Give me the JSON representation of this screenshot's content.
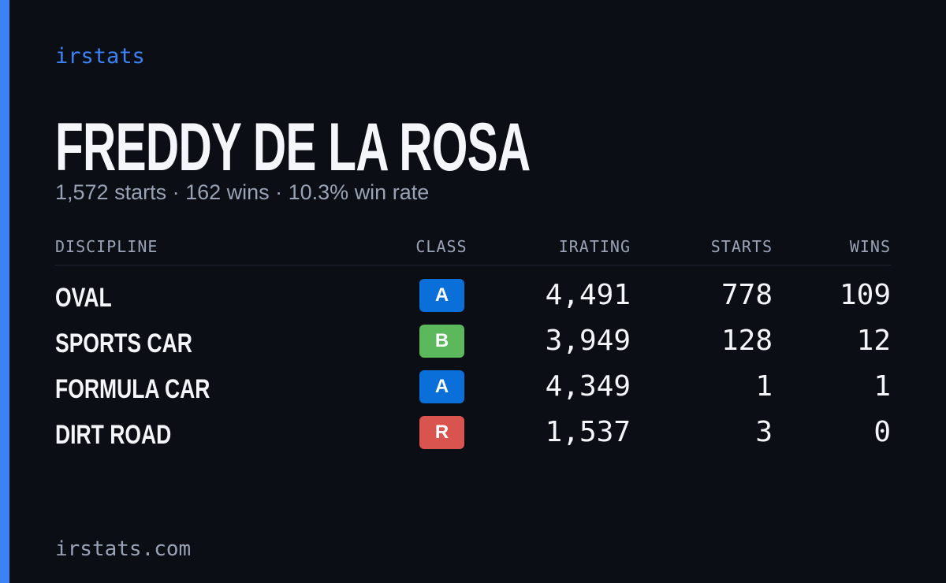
{
  "brand": "irstats",
  "driver": {
    "name": "FREDDY DE LA ROSA",
    "summary": "1,572 starts · 162 wins · 10.3% win rate"
  },
  "table": {
    "headers": [
      "DISCIPLINE",
      "CLASS",
      "IRATING",
      "STARTS",
      "WINS"
    ],
    "rows": [
      {
        "discipline": "OVAL",
        "class": "A",
        "class_color": "#0a6fd8",
        "irating": "4,491",
        "starts": "778",
        "wins": "109"
      },
      {
        "discipline": "SPORTS CAR",
        "class": "B",
        "class_color": "#5cb85c",
        "irating": "3,949",
        "starts": "128",
        "wins": "12"
      },
      {
        "discipline": "FORMULA CAR",
        "class": "A",
        "class_color": "#0a6fd8",
        "irating": "4,349",
        "starts": "1",
        "wins": "1"
      },
      {
        "discipline": "DIRT ROAD",
        "class": "R",
        "class_color": "#d9534f",
        "irating": "1,537",
        "starts": "3",
        "wins": "0"
      }
    ]
  },
  "footer": "irstats.com"
}
